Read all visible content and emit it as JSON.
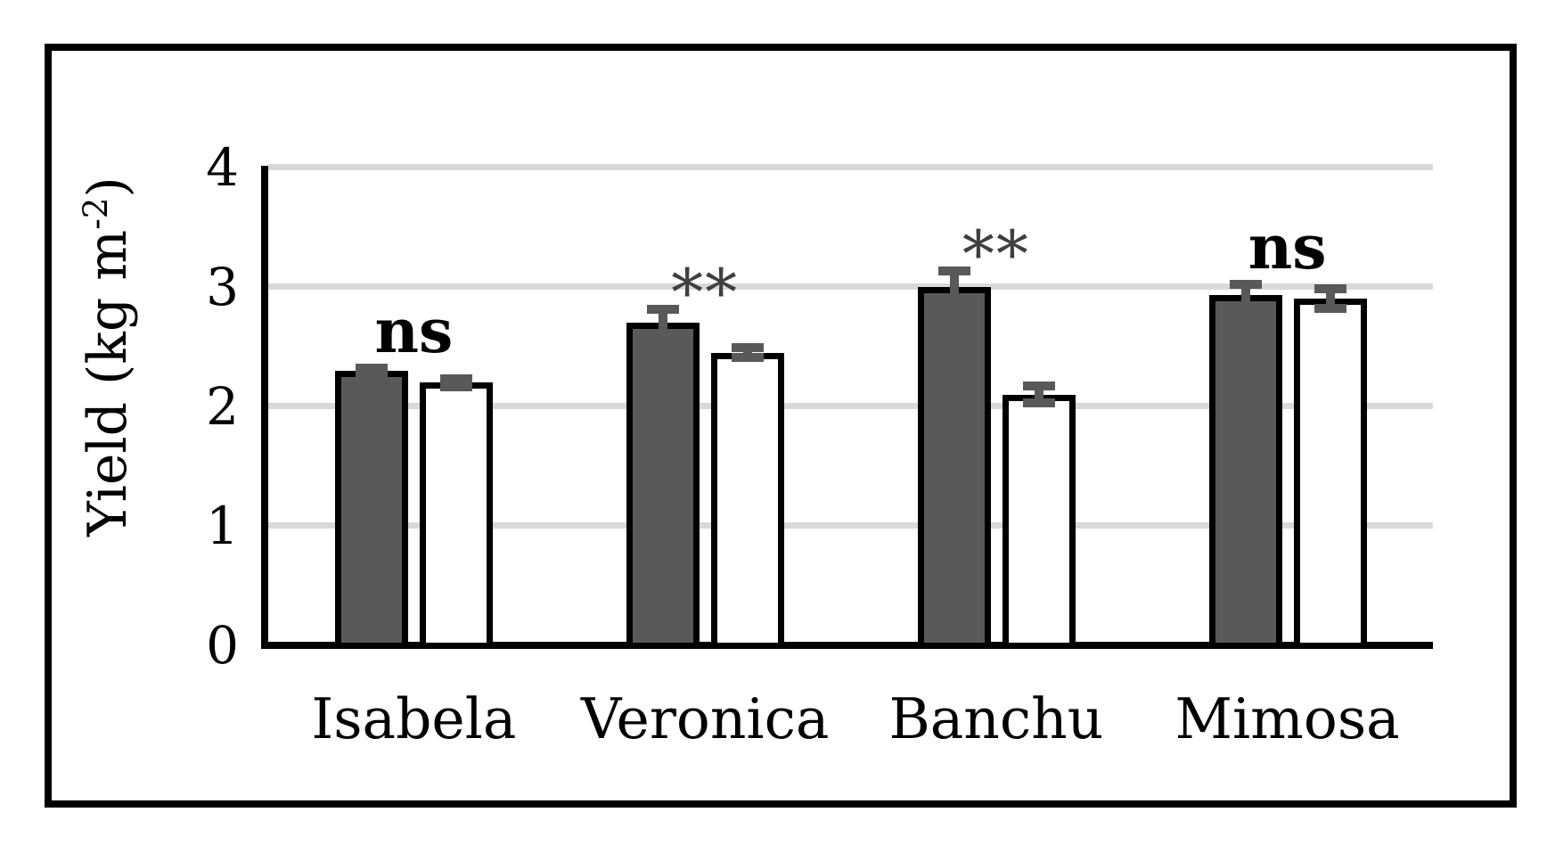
{
  "chart_data": {
    "type": "bar",
    "title": "",
    "categories": [
      "Isabela",
      "Veronica",
      "Banchu",
      "Mimosa"
    ],
    "series": [
      {
        "name": "dark",
        "fill": "#595959",
        "values": [
          2.3,
          2.7,
          3.0,
          2.93
        ],
        "errors": [
          0.06,
          0.15,
          0.17,
          0.13
        ]
      },
      {
        "name": "white",
        "fill": "#ffffff",
        "values": [
          2.2,
          2.45,
          2.1,
          2.9
        ],
        "errors": [
          0.07,
          0.08,
          0.11,
          0.12
        ]
      }
    ],
    "significance_by_category": [
      "ns",
      "**",
      "**",
      "ns"
    ],
    "ylabel": "Yield (kg m⁻²)",
    "ylabel_parts": {
      "main": "Yield (kg m",
      "sup": "-2",
      "end": ")"
    },
    "xlabel": "",
    "ylim": [
      0,
      4
    ],
    "yticks": [
      "0",
      "1",
      "2",
      "3",
      "4"
    ],
    "grid": true,
    "legend": "none"
  },
  "colors": {
    "bar_dark_fill": "#595959",
    "bar_white_fill": "#ffffff",
    "bar_outline": "#000000",
    "error_bar": "#595959",
    "gridline": "#d9d9d9",
    "axis": "#000000",
    "frame": "#000000",
    "background": "#ffffff",
    "significance_asterisk": "#3f3f3f",
    "text": "#000000"
  }
}
